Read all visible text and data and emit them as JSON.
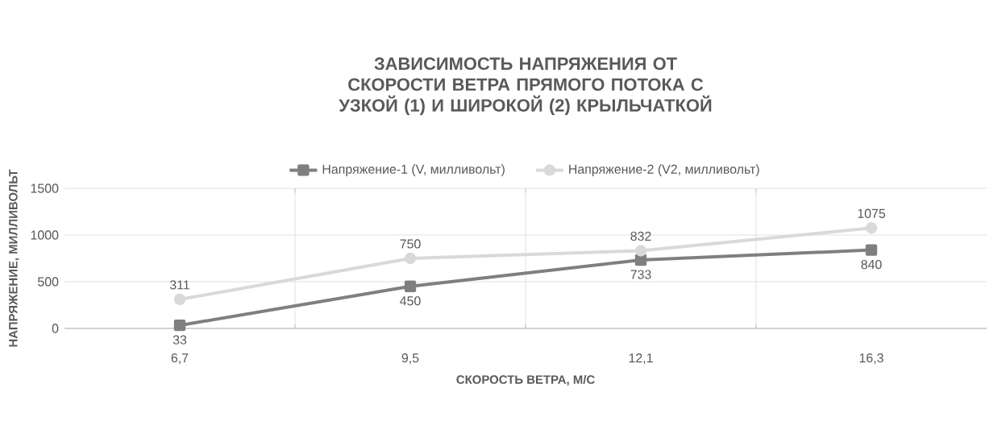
{
  "chart_data": {
    "type": "line",
    "title": "ЗАВИСИМОСТЬ НАПРЯЖЕНИЯ ОТ СКОРОСТИ ВЕТРА ПРЯМОГО ПОТОКА С УЗКОЙ (1) И ШИРОКОЙ (2) КРЫЛЬЧАТКОЙ",
    "xlabel": "СКОРОСТЬ ВЕТРА, М/С",
    "ylabel": "НАПРЯЖЕНИЕ, МИЛЛИВОЛЬТ",
    "categories": [
      "6,7",
      "9,5",
      "12,1",
      "16,3"
    ],
    "series": [
      {
        "name": "Напряжение-1 (V, милливольт)",
        "color": "#7f7f7f",
        "marker": "square",
        "values": [
          33,
          450,
          733,
          840
        ]
      },
      {
        "name": "Напряжение-2 (V2, милливольт)",
        "color": "#d9d9d9",
        "marker": "circle",
        "values": [
          311,
          750,
          832,
          1075
        ]
      }
    ],
    "ylim": [
      0,
      1500
    ],
    "yticks": [
      0,
      500,
      1000,
      1500
    ],
    "grid": true,
    "legend": "top",
    "data_labels": true
  }
}
